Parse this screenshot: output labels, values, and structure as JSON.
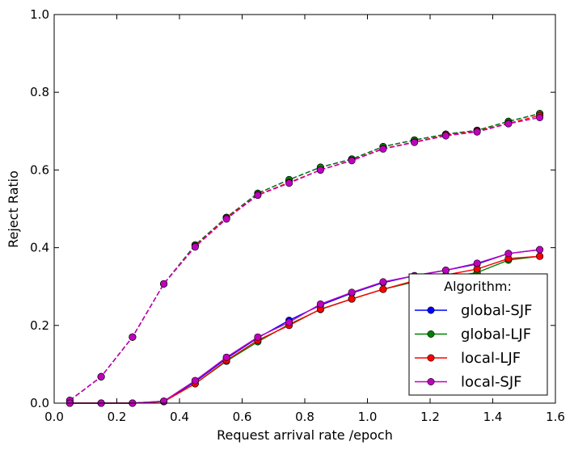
{
  "chart_data": {
    "type": "line",
    "xlabel": "Request arrival rate /epoch",
    "ylabel": "Reject Ratio",
    "xlim": [
      0.0,
      1.6
    ],
    "ylim": [
      0.0,
      1.0
    ],
    "xticks": [
      "0.0",
      "0.2",
      "0.4",
      "0.6",
      "0.8",
      "1.0",
      "1.2",
      "1.4",
      "1.6"
    ],
    "yticks": [
      "0.0",
      "0.2",
      "0.4",
      "0.6",
      "0.8",
      "1.0"
    ],
    "grid": false,
    "legend": {
      "title": "Algorithm:",
      "position": "lower-right",
      "entries": [
        "global-SJF",
        "global-LJF",
        "local-LJF",
        "local-SJF"
      ]
    },
    "x": [
      0.05,
      0.15,
      0.25,
      0.35,
      0.45,
      0.55,
      0.65,
      0.75,
      0.85,
      0.95,
      1.05,
      1.15,
      1.25,
      1.35,
      1.45,
      1.55
    ],
    "series": [
      {
        "name": "global-SJF",
        "color": "#0000ff",
        "linestyle": "solid",
        "values": [
          0.0,
          0.0,
          0.0,
          0.005,
          0.055,
          0.115,
          0.168,
          0.213,
          0.252,
          0.283,
          0.31,
          0.328,
          0.342,
          0.358,
          0.385,
          0.395
        ]
      },
      {
        "name": "global-LJF",
        "color": "#008000",
        "linestyle": "solid",
        "values": [
          0.0,
          0.0,
          0.0,
          0.004,
          0.05,
          0.108,
          0.158,
          0.203,
          0.241,
          0.268,
          0.293,
          0.312,
          0.323,
          0.336,
          0.368,
          0.378
        ]
      },
      {
        "name": "local-LJF",
        "color": "#ff0000",
        "linestyle": "solid",
        "values": [
          0.0,
          0.0,
          0.0,
          0.004,
          0.05,
          0.11,
          0.162,
          0.2,
          0.242,
          0.268,
          0.293,
          0.315,
          0.33,
          0.345,
          0.372,
          0.378
        ]
      },
      {
        "name": "local-SJF",
        "color": "#bf00bf",
        "linestyle": "solid",
        "values": [
          0.0,
          0.0,
          0.0,
          0.005,
          0.058,
          0.118,
          0.17,
          0.208,
          0.255,
          0.285,
          0.312,
          0.328,
          0.342,
          0.36,
          0.385,
          0.395
        ]
      },
      {
        "color": "#0000ff",
        "linestyle": "dashed",
        "values": [
          0.007,
          0.068,
          0.17,
          0.307,
          0.407,
          0.478,
          0.54,
          0.575,
          0.607,
          0.628,
          0.66,
          0.677,
          0.692,
          0.702,
          0.725,
          0.745
        ]
      },
      {
        "color": "#008000",
        "linestyle": "dashed",
        "values": [
          0.007,
          0.068,
          0.17,
          0.307,
          0.407,
          0.478,
          0.54,
          0.575,
          0.607,
          0.628,
          0.66,
          0.677,
          0.692,
          0.702,
          0.725,
          0.745
        ]
      },
      {
        "color": "#ff0000",
        "linestyle": "dashed",
        "values": [
          0.007,
          0.068,
          0.17,
          0.307,
          0.404,
          0.476,
          0.536,
          0.568,
          0.6,
          0.625,
          0.655,
          0.672,
          0.69,
          0.7,
          0.72,
          0.74
        ]
      },
      {
        "color": "#bf00bf",
        "linestyle": "dashed",
        "values": [
          0.007,
          0.068,
          0.17,
          0.307,
          0.402,
          0.474,
          0.535,
          0.566,
          0.6,
          0.624,
          0.654,
          0.671,
          0.688,
          0.698,
          0.719,
          0.735
        ]
      }
    ]
  }
}
